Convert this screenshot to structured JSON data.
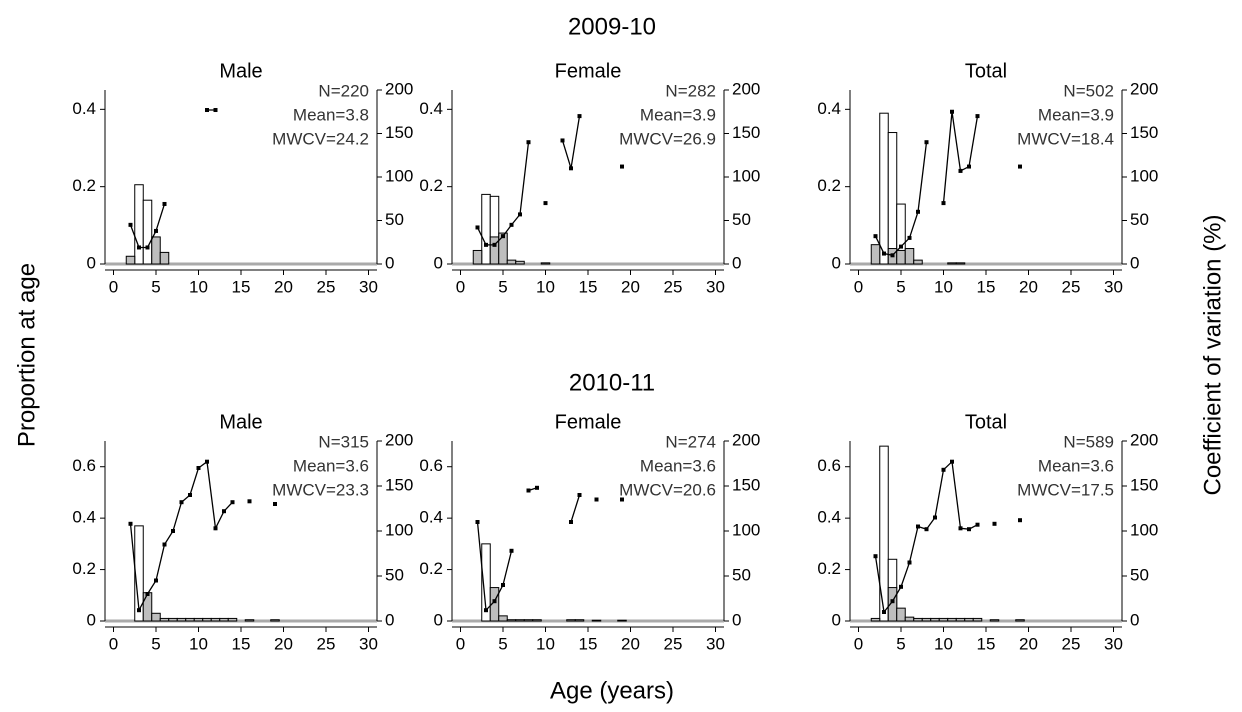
{
  "row_titles": [
    "2009-10",
    "2010-11"
  ],
  "y_label": "Proportion at age",
  "y2_label": "Coefficient of variation (%)",
  "x_label": "Age (years)",
  "chart_data": [
    {
      "type": "bar",
      "title": "Male",
      "annotations": [
        "N=220",
        "Mean=3.8",
        "MWCV=24.2"
      ],
      "x": [
        1,
        2,
        3,
        4,
        5,
        6,
        7,
        8,
        9,
        10,
        11,
        12,
        13,
        14,
        15,
        16,
        17,
        18,
        19,
        20
      ],
      "series": [
        {
          "color": "#ffffff",
          "values": [
            0,
            0,
            0.205,
            0.165,
            0,
            0,
            0,
            0,
            0,
            0,
            0,
            0,
            0,
            0,
            0,
            0,
            0,
            0,
            0,
            0
          ]
        },
        {
          "color": "#bebebe",
          "values": [
            0,
            0.02,
            0,
            0,
            0.07,
            0.03,
            0,
            0,
            0,
            0,
            0,
            0,
            0,
            0,
            0,
            0,
            0,
            0,
            0,
            0
          ]
        },
        {
          "type": "line",
          "axis": "y2",
          "color": "#000000",
          "values": [
            null,
            45,
            19,
            19,
            38,
            69,
            null,
            null,
            null,
            null,
            177,
            177,
            null,
            null,
            null,
            null,
            null,
            null,
            null,
            null
          ]
        }
      ],
      "xlim": [
        -1,
        31
      ],
      "xticks": [
        0,
        5,
        10,
        15,
        20,
        25,
        30
      ],
      "ylim": [
        0,
        0.45
      ],
      "yticks": [
        0,
        0.2,
        0.4
      ],
      "y2lim": [
        0,
        200
      ],
      "y2ticks": [
        0,
        50,
        100,
        150,
        200
      ]
    },
    {
      "type": "bar",
      "title": "Female",
      "annotations": [
        "N=282",
        "Mean=3.9",
        "MWCV=26.9"
      ],
      "x": [
        1,
        2,
        3,
        4,
        5,
        6,
        7,
        8,
        9,
        10,
        11,
        12,
        13,
        14,
        15,
        16,
        17,
        18,
        19,
        20
      ],
      "series": [
        {
          "color": "#ffffff",
          "values": [
            0,
            0,
            0.18,
            0.175,
            0,
            0,
            0,
            0,
            0,
            0,
            0,
            0,
            0,
            0,
            0,
            0,
            0,
            0,
            0,
            0
          ]
        },
        {
          "color": "#bebebe",
          "values": [
            0,
            0.035,
            0,
            0.07,
            0.08,
            0.01,
            0.007,
            0,
            0,
            0.003,
            0,
            0,
            0,
            0,
            0,
            0,
            0,
            0,
            0,
            0
          ]
        },
        {
          "type": "line",
          "axis": "y2",
          "color": "#000000",
          "values": [
            null,
            42,
            22,
            22,
            32,
            45,
            57,
            140,
            null,
            70,
            null,
            142,
            110,
            170,
            null,
            null,
            null,
            null,
            112,
            null
          ]
        }
      ],
      "xlim": [
        -1,
        31
      ],
      "xticks": [
        0,
        5,
        10,
        15,
        20,
        25,
        30
      ],
      "ylim": [
        0,
        0.45
      ],
      "yticks": [
        0,
        0.2,
        0.4
      ],
      "y2lim": [
        0,
        200
      ],
      "y2ticks": [
        0,
        50,
        100,
        150,
        200
      ]
    },
    {
      "type": "bar",
      "title": "Total",
      "annotations": [
        "N=502",
        "Mean=3.9",
        "MWCV=18.4"
      ],
      "x": [
        1,
        2,
        3,
        4,
        5,
        6,
        7,
        8,
        9,
        10,
        11,
        12,
        13,
        14,
        15,
        16,
        17,
        18,
        19,
        20
      ],
      "series": [
        {
          "color": "#ffffff",
          "values": [
            0,
            0,
            0.39,
            0.34,
            0.155,
            0,
            0,
            0,
            0,
            0,
            0,
            0,
            0,
            0,
            0,
            0,
            0,
            0,
            0,
            0
          ]
        },
        {
          "color": "#bebebe",
          "values": [
            0,
            0.05,
            0,
            0.04,
            0.035,
            0.04,
            0.01,
            0,
            0,
            0,
            0.003,
            0.003,
            0,
            0,
            0,
            0,
            0,
            0,
            0,
            0
          ]
        },
        {
          "type": "line",
          "axis": "y2",
          "color": "#000000",
          "values": [
            null,
            32,
            12,
            10,
            20,
            30,
            60,
            140,
            null,
            70,
            175,
            107,
            112,
            170,
            null,
            null,
            null,
            null,
            112,
            null
          ]
        }
      ],
      "xlim": [
        -1,
        31
      ],
      "xticks": [
        0,
        5,
        10,
        15,
        20,
        25,
        30
      ],
      "ylim": [
        0,
        0.45
      ],
      "yticks": [
        0,
        0.2,
        0.4
      ],
      "y2lim": [
        0,
        200
      ],
      "y2ticks": [
        0,
        50,
        100,
        150,
        200
      ]
    },
    {
      "type": "bar",
      "title": "Male",
      "annotations": [
        "N=315",
        "Mean=3.6",
        "MWCV=23.3"
      ],
      "x": [
        1,
        2,
        3,
        4,
        5,
        6,
        7,
        8,
        9,
        10,
        11,
        12,
        13,
        14,
        15,
        16,
        17,
        18,
        19,
        20
      ],
      "series": [
        {
          "color": "#ffffff",
          "values": [
            0,
            0,
            0.37,
            0,
            0,
            0,
            0,
            0,
            0,
            0,
            0,
            0,
            0,
            0,
            0,
            0,
            0,
            0,
            0,
            0
          ]
        },
        {
          "color": "#bebebe",
          "values": [
            0,
            0,
            0,
            0.11,
            0.03,
            0.01,
            0.01,
            0.01,
            0.01,
            0.01,
            0.01,
            0.01,
            0.01,
            0.01,
            0,
            0.005,
            0,
            0,
            0.005,
            0
          ]
        },
        {
          "type": "line",
          "axis": "y2",
          "color": "#000000",
          "values": [
            null,
            108,
            12,
            30,
            45,
            85,
            100,
            132,
            140,
            170,
            177,
            103,
            122,
            132,
            null,
            133,
            null,
            null,
            130,
            null
          ]
        }
      ],
      "xlim": [
        -1,
        31
      ],
      "xticks": [
        0,
        5,
        10,
        15,
        20,
        25,
        30
      ],
      "ylim": [
        0,
        0.7
      ],
      "yticks": [
        0,
        0.2,
        0.4,
        0.6
      ],
      "y2lim": [
        0,
        200
      ],
      "y2ticks": [
        0,
        50,
        100,
        150,
        200
      ]
    },
    {
      "type": "bar",
      "title": "Female",
      "annotations": [
        "N=274",
        "Mean=3.6",
        "MWCV=20.6"
      ],
      "x": [
        1,
        2,
        3,
        4,
        5,
        6,
        7,
        8,
        9,
        10,
        11,
        12,
        13,
        14,
        15,
        16,
        17,
        18,
        19,
        20
      ],
      "series": [
        {
          "color": "#ffffff",
          "values": [
            0,
            0,
            0.3,
            0,
            0,
            0,
            0,
            0,
            0,
            0,
            0,
            0,
            0,
            0,
            0,
            0,
            0,
            0,
            0,
            0
          ]
        },
        {
          "color": "#bebebe",
          "values": [
            0,
            0,
            0,
            0.13,
            0.02,
            0.005,
            0.005,
            0.005,
            0.005,
            0,
            0,
            0,
            0.005,
            0.005,
            0,
            0.003,
            0,
            0,
            0.003,
            0
          ]
        },
        {
          "type": "line",
          "axis": "y2",
          "color": "#000000",
          "values": [
            null,
            110,
            12,
            22,
            40,
            78,
            null,
            145,
            148,
            null,
            null,
            null,
            110,
            140,
            null,
            135,
            null,
            null,
            135,
            null
          ]
        }
      ],
      "xlim": [
        -1,
        31
      ],
      "xticks": [
        0,
        5,
        10,
        15,
        20,
        25,
        30
      ],
      "ylim": [
        0,
        0.7
      ],
      "yticks": [
        0,
        0.2,
        0.4,
        0.6
      ],
      "y2lim": [
        0,
        200
      ],
      "y2ticks": [
        0,
        50,
        100,
        150,
        200
      ]
    },
    {
      "type": "bar",
      "title": "Total",
      "annotations": [
        "N=589",
        "Mean=3.6",
        "MWCV=17.5"
      ],
      "x": [
        1,
        2,
        3,
        4,
        5,
        6,
        7,
        8,
        9,
        10,
        11,
        12,
        13,
        14,
        15,
        16,
        17,
        18,
        19,
        20
      ],
      "series": [
        {
          "color": "#ffffff",
          "values": [
            0,
            0,
            0.68,
            0.24,
            0,
            0,
            0,
            0,
            0,
            0,
            0,
            0,
            0,
            0,
            0,
            0,
            0,
            0,
            0,
            0
          ]
        },
        {
          "color": "#bebebe",
          "values": [
            0,
            0.01,
            0,
            0.13,
            0.05,
            0.015,
            0.01,
            0.01,
            0.01,
            0.01,
            0.01,
            0.01,
            0.01,
            0.01,
            0,
            0.005,
            0,
            0,
            0.005,
            0
          ]
        },
        {
          "type": "line",
          "axis": "y2",
          "color": "#000000",
          "values": [
            null,
            72,
            10,
            22,
            38,
            65,
            105,
            102,
            115,
            168,
            177,
            103,
            102,
            107,
            null,
            108,
            null,
            null,
            112,
            null
          ]
        }
      ],
      "xlim": [
        -1,
        31
      ],
      "xticks": [
        0,
        5,
        10,
        15,
        20,
        25,
        30
      ],
      "ylim": [
        0,
        0.7
      ],
      "yticks": [
        0,
        0.2,
        0.4,
        0.6
      ],
      "y2lim": [
        0,
        200
      ],
      "y2ticks": [
        0,
        50,
        100,
        150,
        200
      ]
    }
  ]
}
